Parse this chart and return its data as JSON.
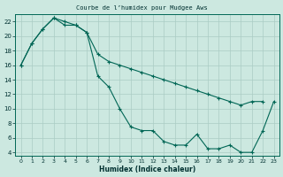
{
  "title": "Courbe de l’humidex pour Mudgee Aws",
  "xlabel": "Humidex (Indice chaleur)",
  "bg_color": "#cce8e0",
  "line_color": "#006655",
  "grid_color": "#aaccc4",
  "xlim": [
    -0.5,
    23.5
  ],
  "ylim": [
    3.5,
    23
  ],
  "yticks": [
    4,
    6,
    8,
    10,
    12,
    14,
    16,
    18,
    20,
    22
  ],
  "xticks": [
    0,
    1,
    2,
    3,
    4,
    5,
    6,
    7,
    8,
    9,
    10,
    11,
    12,
    13,
    14,
    15,
    16,
    17,
    18,
    19,
    20,
    21,
    22,
    23
  ],
  "line1_x": [
    0,
    1,
    2,
    3,
    4,
    5,
    6,
    7,
    8,
    9,
    10,
    11,
    12,
    13,
    14,
    15,
    16,
    17,
    18,
    19,
    20,
    21,
    22
  ],
  "line1_y": [
    16,
    19,
    21,
    22.5,
    22,
    21.5,
    20.5,
    17.5,
    16.5,
    16.0,
    15.5,
    15.0,
    14.5,
    14.0,
    13.5,
    13.0,
    12.5,
    12.0,
    11.5,
    11.0,
    10.5,
    11.0,
    11.0
  ],
  "line2_x": [
    0,
    1,
    2,
    3,
    4,
    5,
    6,
    7,
    8,
    9,
    10,
    11,
    12,
    13,
    14,
    15,
    16,
    17,
    18,
    19,
    20,
    21,
    22,
    23
  ],
  "line2_y": [
    16,
    19,
    21,
    22.5,
    21.5,
    21.5,
    20.5,
    14.5,
    13.0,
    10.0,
    7.5,
    7.0,
    7.0,
    5.5,
    5.0,
    5.0,
    6.5,
    4.5,
    4.5,
    5.0,
    4.0,
    4.0,
    7.0,
    11.0
  ]
}
